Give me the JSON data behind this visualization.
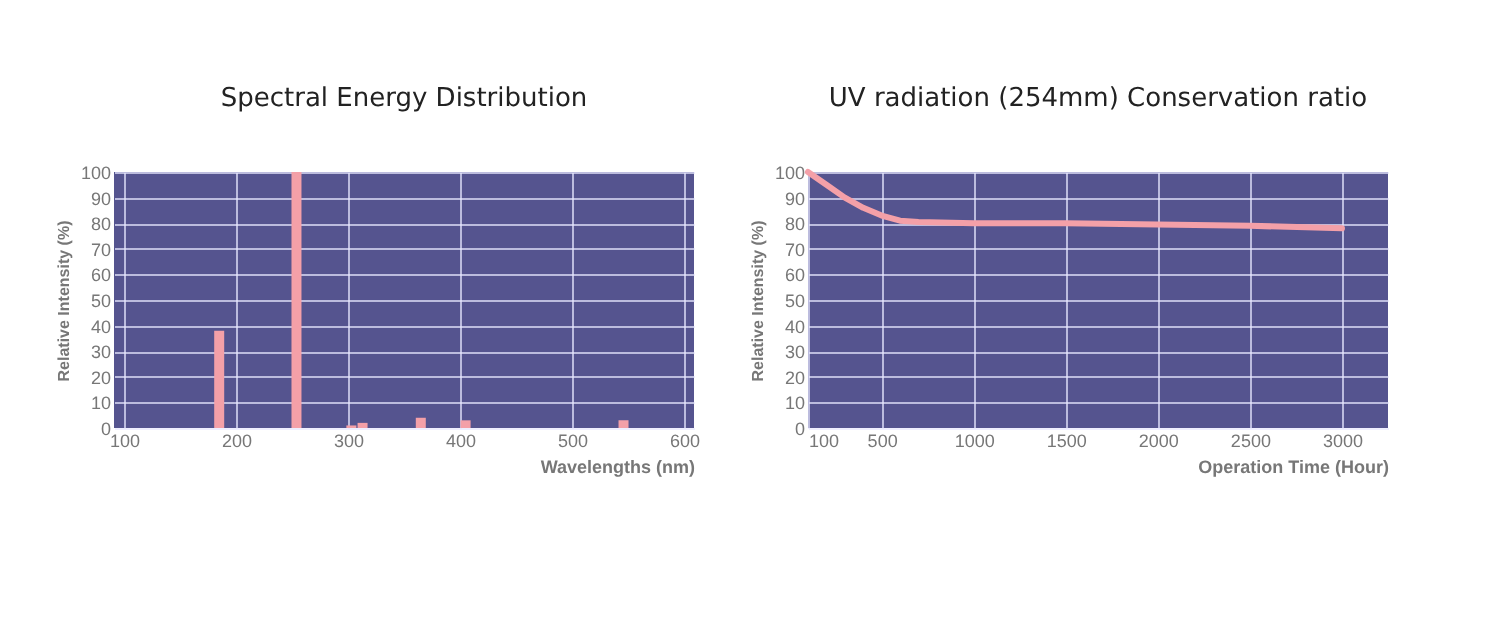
{
  "chart_data": [
    {
      "type": "bar",
      "title": "Spectral Energy Distribution",
      "xlabel": "Wavelengths (nm)",
      "ylabel": "Relative Intensity (%)",
      "x": [
        185,
        254,
        303,
        313,
        365,
        405,
        546
      ],
      "values": [
        38,
        100,
        1,
        2,
        4,
        3,
        3
      ],
      "color": "#f4a0a8",
      "xlim": [
        100,
        600
      ],
      "xticks": [
        100,
        200,
        300,
        400,
        500,
        600
      ],
      "ylim": [
        0,
        100
      ],
      "yticks": [
        0,
        10,
        20,
        30,
        40,
        50,
        60,
        70,
        80,
        90,
        100
      ],
      "grid": true
    },
    {
      "type": "line",
      "title": "UV radiation (254mm) Conservation ratio",
      "xlabel": "Operation Time (Hour)",
      "ylabel": "Relative Intensity (%)",
      "x": [
        100,
        200,
        300,
        400,
        500,
        600,
        700,
        1000,
        1500,
        2000,
        2500,
        3000
      ],
      "values": [
        100,
        95,
        90,
        86,
        83,
        81,
        80.5,
        80,
        80,
        79.5,
        79,
        78
      ],
      "color": "#f4a0a8",
      "xlim": [
        100,
        3250
      ],
      "xticks": [
        100,
        500,
        1000,
        1500,
        2000,
        2500,
        3000
      ],
      "ylim": [
        0,
        100
      ],
      "yticks": [
        0,
        10,
        20,
        30,
        40,
        50,
        60,
        70,
        80,
        90,
        100
      ],
      "grid": true
    }
  ]
}
